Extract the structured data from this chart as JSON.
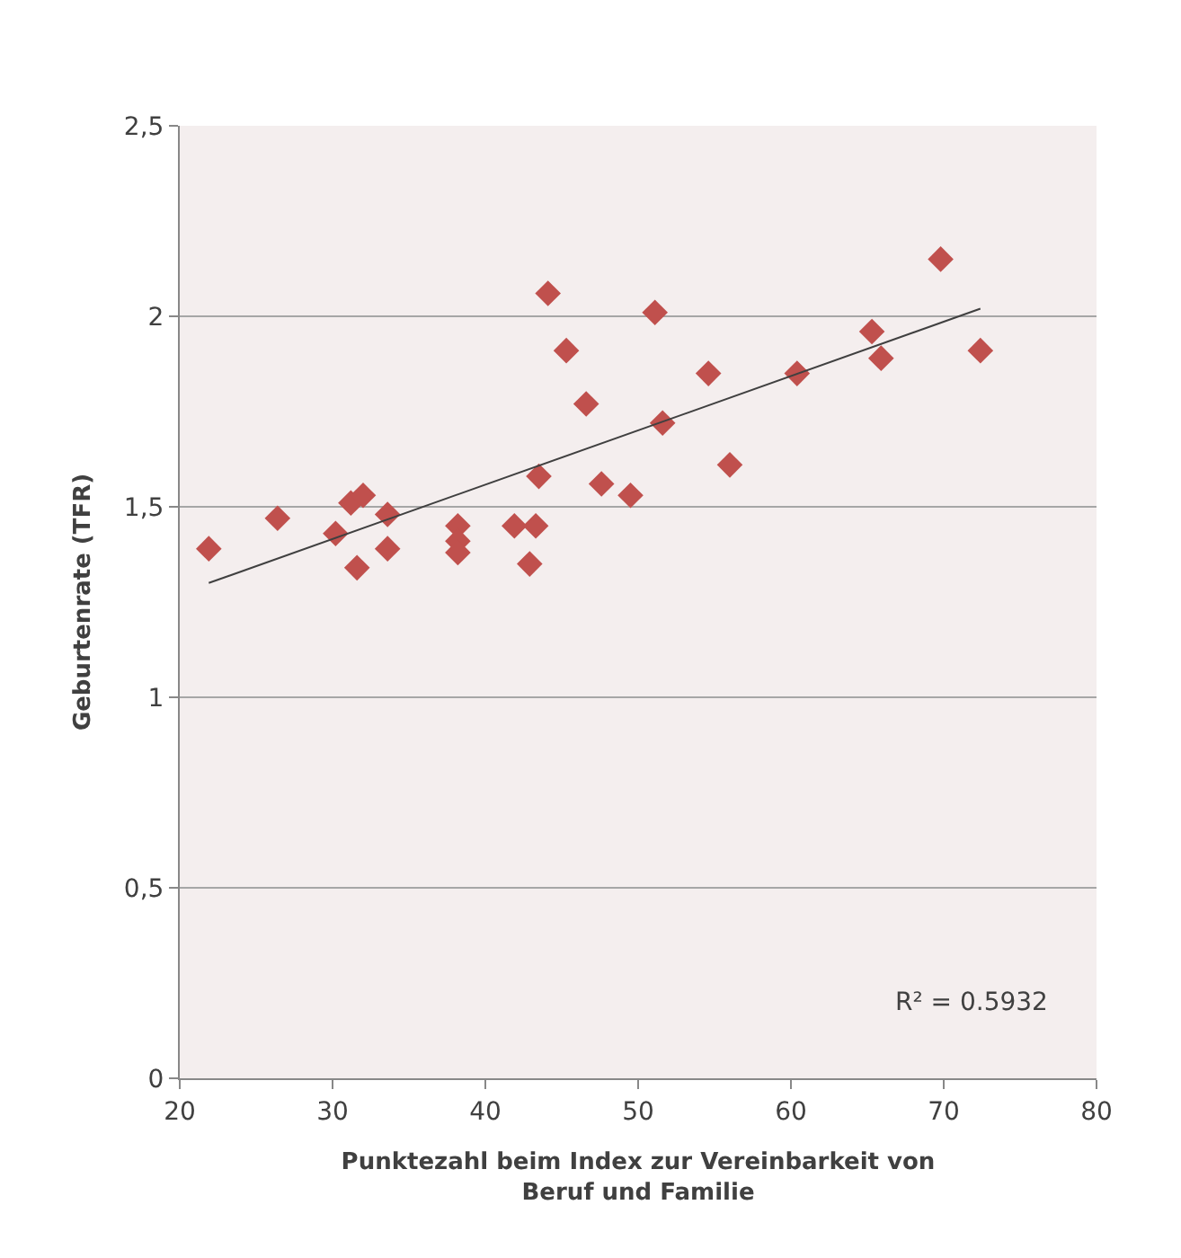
{
  "chart_data": {
    "type": "scatter",
    "xlabel": "Punktezahl beim Index zur Vereinbarkeit von Beruf und Familie",
    "ylabel": "Geburtenrate (TFR)",
    "xlim": [
      20,
      80
    ],
    "xticks": [
      20,
      30,
      40,
      50,
      60,
      70,
      80
    ],
    "ylim": [
      0,
      2.5
    ],
    "yticks": [
      0,
      {
        "value": 0.5,
        "label": "0,5"
      },
      1,
      {
        "value": 1.5,
        "label": "1,5"
      },
      2,
      {
        "value": 2.5,
        "label": "2,5"
      }
    ],
    "grid": "y",
    "marker": "diamond",
    "series": [
      {
        "color": "#c0504d",
        "x": [
          21.9,
          26.4,
          30.2,
          31.2,
          32.0,
          31.6,
          33.6,
          33.6,
          38.2,
          38.2,
          38.2,
          41.9,
          43.3,
          42.9,
          43.5,
          44.1,
          45.3,
          46.6,
          47.6,
          49.5,
          51.1,
          51.6,
          54.6,
          56.0,
          60.4,
          65.3,
          65.9,
          69.8,
          72.4
        ],
        "values": [
          1.39,
          1.47,
          1.43,
          1.51,
          1.53,
          1.34,
          1.48,
          1.39,
          1.45,
          1.41,
          1.38,
          1.45,
          1.45,
          1.35,
          1.58,
          2.06,
          1.91,
          1.77,
          1.56,
          1.53,
          2.01,
          1.72,
          1.85,
          1.61,
          1.85,
          1.96,
          1.89,
          2.15,
          1.91
        ]
      },
      {
        "type": "line",
        "color": "#404040",
        "marker": "none",
        "x": [
          21.9,
          72.4
        ],
        "values": [
          1.3,
          2.02
        ]
      }
    ],
    "annotations": [
      "R² = 0.5932"
    ]
  }
}
